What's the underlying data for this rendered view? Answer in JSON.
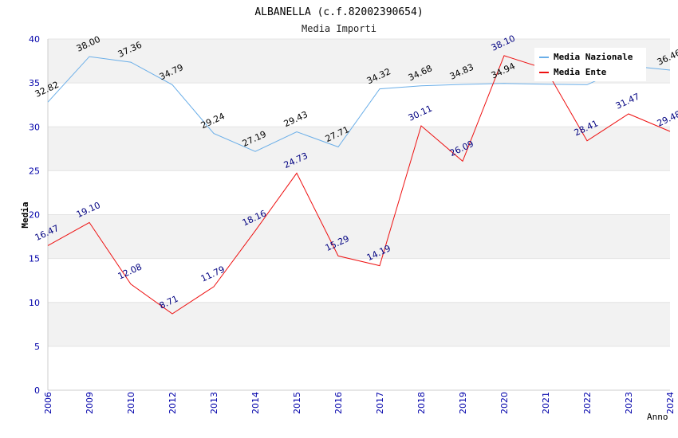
{
  "chart_data": {
    "type": "line",
    "title": "ALBANELLA (c.f.82002390654)",
    "subtitle": "Media Importi",
    "xlabel": "Anno",
    "ylabel": "Media",
    "ylim": [
      0,
      40
    ],
    "yticks": [
      0,
      5,
      10,
      15,
      20,
      25,
      30,
      35,
      40
    ],
    "categories": [
      "2006",
      "2009",
      "2010",
      "2012",
      "2013",
      "2014",
      "2015",
      "2016",
      "2017",
      "2018",
      "2019",
      "2020",
      "2021",
      "2022",
      "2023",
      "2024"
    ],
    "series": [
      {
        "name": "Media Nazionale",
        "color": "#6aaee8",
        "label_color": "#000000",
        "values": [
          32.82,
          38.0,
          37.36,
          34.79,
          29.24,
          27.19,
          29.43,
          27.71,
          34.32,
          34.68,
          34.83,
          34.94,
          34.85,
          34.79,
          36.95,
          36.46
        ],
        "labels": [
          "32.82",
          "38.00",
          "37.36",
          "34.79",
          "29.24",
          "27.19",
          "29.43",
          "27.71",
          "34.32",
          "34.68",
          "34.83",
          "34.94",
          "",
          "",
          "",
          "36.46"
        ]
      },
      {
        "name": "Media Ente",
        "color": "#ee1111",
        "label_color": "#000080",
        "values": [
          16.47,
          19.1,
          12.08,
          8.71,
          11.79,
          18.16,
          24.73,
          15.29,
          14.19,
          30.11,
          26.09,
          38.1,
          36.6,
          28.41,
          31.47,
          29.48
        ],
        "labels": [
          "16.47",
          "19.10",
          "12.08",
          "8.71",
          "11.79",
          "18.16",
          "24.73",
          "15.29",
          "14.19",
          "30.11",
          "26.09",
          "38.10",
          "",
          "28.41",
          "31.47",
          "29.48"
        ]
      }
    ],
    "legend": "top-right",
    "grid": true
  }
}
